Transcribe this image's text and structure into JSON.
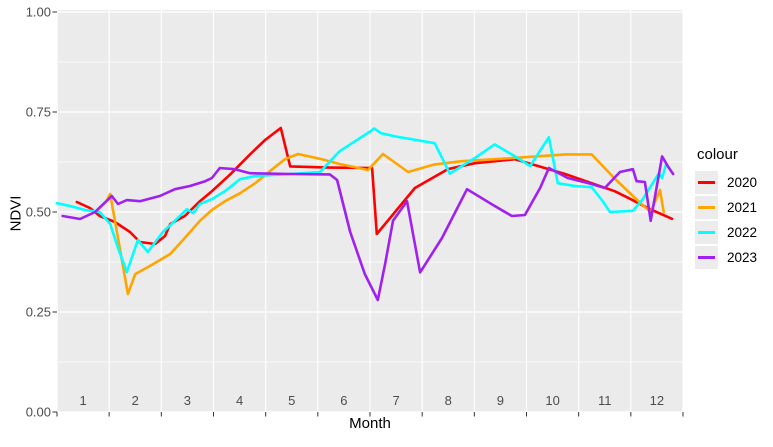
{
  "chart_data": {
    "type": "line",
    "title": "",
    "xlabel": "Month",
    "ylabel": "NDVI",
    "xlim": [
      1,
      13
    ],
    "ylim": [
      0,
      1
    ],
    "grid": true,
    "legend_position": "right",
    "legend_title": "colour",
    "x_tick_labels": [
      "1",
      "2",
      "3",
      "4",
      "5",
      "6",
      "7",
      "8",
      "9",
      "10",
      "11",
      "12"
    ],
    "x_gridlines": [
      1,
      2,
      3,
      4,
      5,
      6,
      7,
      8,
      9,
      10,
      11,
      12,
      13
    ],
    "y_ticks": [
      {
        "value": 0.0,
        "label": "0.00"
      },
      {
        "value": 0.25,
        "label": "0.25"
      },
      {
        "value": 0.5,
        "label": "0.50"
      },
      {
        "value": 0.75,
        "label": "0.75"
      },
      {
        "value": 1.0,
        "label": "1.00"
      }
    ],
    "y_minor_gridlines": [
      0.125,
      0.375,
      0.625,
      0.875
    ],
    "series": [
      {
        "name": "2020",
        "color": "#FF0000",
        "points": [
          [
            1.38,
            0.525
          ],
          [
            1.63,
            0.51
          ],
          [
            1.82,
            0.49
          ],
          [
            2.11,
            0.475
          ],
          [
            2.4,
            0.45
          ],
          [
            2.59,
            0.425
          ],
          [
            2.88,
            0.42
          ],
          [
            3.07,
            0.44
          ],
          [
            3.17,
            0.47
          ],
          [
            3.45,
            0.49
          ],
          [
            3.74,
            0.527
          ],
          [
            3.97,
            0.552
          ],
          [
            4.32,
            0.594
          ],
          [
            4.7,
            0.644
          ],
          [
            4.99,
            0.68
          ],
          [
            5.29,
            0.71
          ],
          [
            5.47,
            0.614
          ],
          [
            6.23,
            0.611
          ],
          [
            7.04,
            0.61
          ],
          [
            7.13,
            0.445
          ],
          [
            7.86,
            0.56
          ],
          [
            8.49,
            0.607
          ],
          [
            9.01,
            0.622
          ],
          [
            9.78,
            0.632
          ],
          [
            10.74,
            0.595
          ],
          [
            11.69,
            0.552
          ],
          [
            12.0,
            0.532
          ],
          [
            12.37,
            0.507
          ],
          [
            12.79,
            0.483
          ]
        ]
      },
      {
        "name": "2021",
        "color": "#FFA500",
        "points": [
          [
            1.96,
            0.53
          ],
          [
            2.02,
            0.545
          ],
          [
            2.36,
            0.295
          ],
          [
            2.5,
            0.345
          ],
          [
            2.78,
            0.365
          ],
          [
            3.17,
            0.395
          ],
          [
            3.45,
            0.435
          ],
          [
            3.74,
            0.478
          ],
          [
            3.97,
            0.505
          ],
          [
            4.22,
            0.527
          ],
          [
            4.51,
            0.547
          ],
          [
            4.8,
            0.572
          ],
          [
            5.08,
            0.602
          ],
          [
            5.37,
            0.632
          ],
          [
            5.62,
            0.645
          ],
          [
            6.04,
            0.633
          ],
          [
            6.42,
            0.62
          ],
          [
            6.96,
            0.605
          ],
          [
            7.25,
            0.645
          ],
          [
            7.73,
            0.6
          ],
          [
            8.24,
            0.619
          ],
          [
            8.76,
            0.627
          ],
          [
            9.39,
            0.632
          ],
          [
            9.97,
            0.637
          ],
          [
            10.74,
            0.644
          ],
          [
            11.25,
            0.644
          ],
          [
            11.68,
            0.585
          ],
          [
            12.0,
            0.545
          ],
          [
            12.23,
            0.517
          ],
          [
            12.38,
            0.5
          ],
          [
            12.56,
            0.555
          ],
          [
            12.63,
            0.5
          ]
        ]
      },
      {
        "name": "2022",
        "color": "#00FFFF",
        "points": [
          [
            1.0,
            0.522
          ],
          [
            1.25,
            0.515
          ],
          [
            1.54,
            0.505
          ],
          [
            1.82,
            0.5
          ],
          [
            2.02,
            0.47
          ],
          [
            2.17,
            0.41
          ],
          [
            2.34,
            0.35
          ],
          [
            2.55,
            0.43
          ],
          [
            2.74,
            0.4
          ],
          [
            3.03,
            0.45
          ],
          [
            3.26,
            0.478
          ],
          [
            3.49,
            0.507
          ],
          [
            3.61,
            0.497
          ],
          [
            3.74,
            0.52
          ],
          [
            3.97,
            0.532
          ],
          [
            4.22,
            0.552
          ],
          [
            4.51,
            0.582
          ],
          [
            4.8,
            0.59
          ],
          [
            5.47,
            0.595
          ],
          [
            6.04,
            0.6
          ],
          [
            6.42,
            0.652
          ],
          [
            7.0,
            0.701
          ],
          [
            7.08,
            0.709
          ],
          [
            7.21,
            0.697
          ],
          [
            7.48,
            0.689
          ],
          [
            8.24,
            0.672
          ],
          [
            8.53,
            0.596
          ],
          [
            9.01,
            0.635
          ],
          [
            9.39,
            0.669
          ],
          [
            9.78,
            0.639
          ],
          [
            10.07,
            0.615
          ],
          [
            10.43,
            0.687
          ],
          [
            10.6,
            0.572
          ],
          [
            10.93,
            0.565
          ],
          [
            11.25,
            0.562
          ],
          [
            11.46,
            0.527
          ],
          [
            11.6,
            0.5
          ],
          [
            12.04,
            0.503
          ],
          [
            12.23,
            0.532
          ],
          [
            12.42,
            0.572
          ],
          [
            12.54,
            0.597
          ],
          [
            12.6,
            0.585
          ],
          [
            12.67,
            0.617
          ]
        ]
      },
      {
        "name": "2023",
        "color": "#A020F0",
        "points": [
          [
            1.11,
            0.49
          ],
          [
            1.44,
            0.4825
          ],
          [
            1.73,
            0.5
          ],
          [
            2.05,
            0.54
          ],
          [
            2.17,
            0.52
          ],
          [
            2.34,
            0.53
          ],
          [
            2.59,
            0.527
          ],
          [
            2.97,
            0.54
          ],
          [
            3.26,
            0.557
          ],
          [
            3.55,
            0.565
          ],
          [
            3.84,
            0.577
          ],
          [
            3.97,
            0.585
          ],
          [
            4.12,
            0.61
          ],
          [
            4.41,
            0.607
          ],
          [
            4.7,
            0.597
          ],
          [
            5.47,
            0.595
          ],
          [
            6.23,
            0.594
          ],
          [
            6.37,
            0.58
          ],
          [
            6.62,
            0.45
          ],
          [
            6.9,
            0.345
          ],
          [
            7.15,
            0.28
          ],
          [
            7.29,
            0.37
          ],
          [
            7.44,
            0.478
          ],
          [
            7.71,
            0.527
          ],
          [
            7.96,
            0.349
          ],
          [
            8.38,
            0.435
          ],
          [
            8.86,
            0.557
          ],
          [
            9.39,
            0.515
          ],
          [
            9.72,
            0.49
          ],
          [
            9.97,
            0.4925
          ],
          [
            10.26,
            0.56
          ],
          [
            10.43,
            0.61
          ],
          [
            10.79,
            0.585
          ],
          [
            11.25,
            0.57
          ],
          [
            11.5,
            0.56
          ],
          [
            11.79,
            0.6
          ],
          [
            12.04,
            0.607
          ],
          [
            12.11,
            0.577
          ],
          [
            12.27,
            0.575
          ],
          [
            12.38,
            0.478
          ],
          [
            12.6,
            0.639
          ],
          [
            12.71,
            0.614
          ],
          [
            12.81,
            0.595
          ]
        ]
      }
    ]
  },
  "theme": {
    "page_bg": "#FFFFFF",
    "panel_bg": "#EBEBEB",
    "grid_color": "#FFFFFF",
    "axis_text_color": "#4D4D4D",
    "axis_title_color": "#000000",
    "tick_color": "#333333",
    "legend_key_bg": "#ECECEC"
  }
}
